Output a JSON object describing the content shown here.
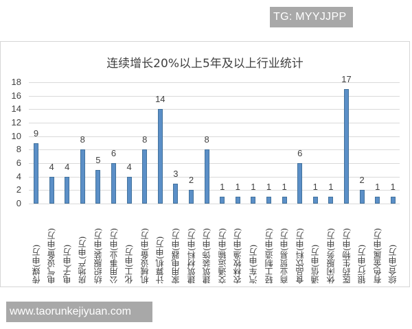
{
  "watermarks": {
    "tg": "TG: MYYJJPP",
    "url": "www.taorunkejiyuan.com"
  },
  "colors": {
    "bar": "#5b8fc7",
    "grid": "#d9d9d9",
    "text": "#404040"
  },
  "chart_data": {
    "type": "bar",
    "title": "连续增长20%以上5年及以上行业统计",
    "xlabel": "",
    "ylabel": "",
    "ylim": [
      0,
      18
    ],
    "yticks": [
      0,
      2,
      4,
      6,
      8,
      10,
      12,
      14,
      16,
      18
    ],
    "grid": true,
    "legend": null,
    "data_labels": true,
    "categories": [
      "传媒(申万)",
      "电气设备(申万)",
      "电子(申万)",
      "房地产(申万)",
      "纺织服装(申万)",
      "公用事业(申万)",
      "化工(申万)",
      "机械设备(申万)",
      "计算机(申万)",
      "家用电器(申万)",
      "建筑材料(申万)",
      "建筑装饰(申万)",
      "交通运输(申万)",
      "农林牧渔(申万)",
      "汽车(申万)",
      "轻工制造(申万)",
      "商业贸易(申万)",
      "食品饮料(申万)",
      "通信(申万)",
      "休闲服务(申万)",
      "医药生物(申万)",
      "银行(申万)",
      "有色金属(申万)",
      "综合(申万)"
    ],
    "values": [
      9,
      4,
      4,
      8,
      5,
      6,
      4,
      8,
      14,
      3,
      2,
      8,
      1,
      1,
      1,
      1,
      1,
      6,
      1,
      1,
      17,
      2,
      1,
      1
    ]
  }
}
